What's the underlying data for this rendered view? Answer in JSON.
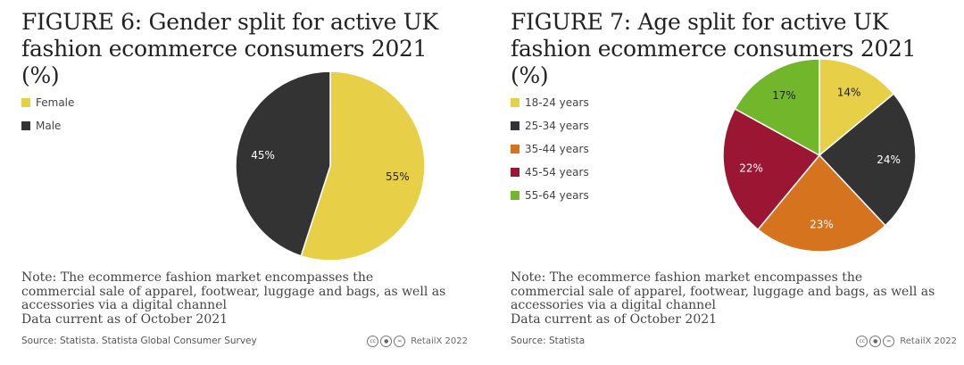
{
  "colors": {
    "yellow": "#e8cf48",
    "dark": "#333333",
    "orange": "#d6731f",
    "crimson": "#9a1633",
    "green": "#72b62c"
  },
  "credit": {
    "text": "RetailX 2022",
    "icons": [
      "cc-icon",
      "by-icon",
      "nd-icon"
    ]
  },
  "chart_data": [
    {
      "type": "pie",
      "title": "FIGURE 6: Gender split for active UK fashion ecommerce consumers 2021 (%)",
      "labels": [
        "Female",
        "Male"
      ],
      "values": [
        55,
        45
      ],
      "value_labels": [
        "55%",
        "45%"
      ],
      "colors": [
        "#e8cf48",
        "#333333"
      ],
      "legend": "top-left",
      "note": [
        "Note: The ecommerce fashion market encompasses the",
        "commercial sale of apparel, footwear, luggage and bags, as well as",
        "accessories via a digital channel",
        "Data current as of October 2021"
      ],
      "source": "Source: Statista. Statista Global Consumer Survey"
    },
    {
      "type": "pie",
      "title": "FIGURE 7: Age split for active UK fashion ecommerce consumers 2021 (%)",
      "labels": [
        "18-24 years",
        "25-34 years",
        "35-44 years",
        "45-54 years",
        "55-64 years"
      ],
      "values": [
        14,
        24,
        23,
        22,
        17
      ],
      "value_labels": [
        "14%",
        "24%",
        "23%",
        "22%",
        "17%"
      ],
      "colors": [
        "#e8cf48",
        "#333333",
        "#d6731f",
        "#9a1633",
        "#72b62c"
      ],
      "legend": "top-left",
      "note": [
        "Note: The ecommerce fashion market encompasses the",
        "commercial sale of apparel, footwear, luggage and bags, as well as",
        "accessories via a digital channel",
        "Data current as of October 2021"
      ],
      "source": "Source: Statista"
    }
  ]
}
